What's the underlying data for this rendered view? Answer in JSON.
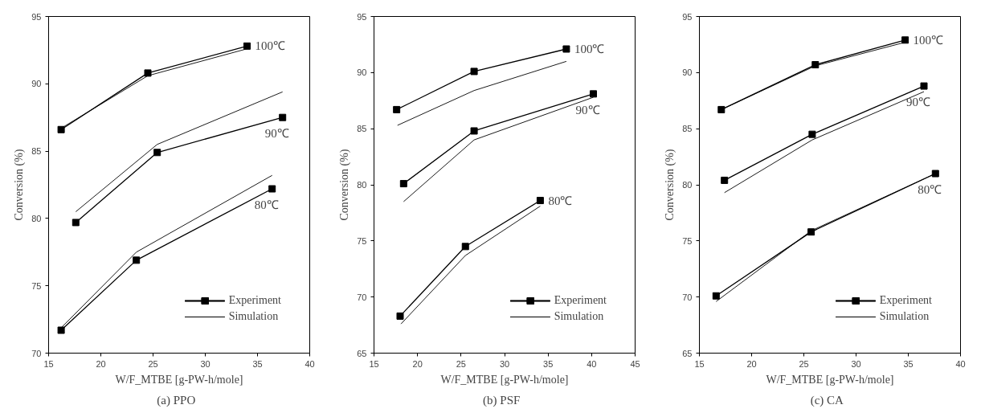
{
  "chart_data": [
    {
      "type": "line",
      "title": "(a)   PPO",
      "xlabel": "W/F_MTBE [g-PW-h/mole]",
      "ylabel": "Conversion (%)",
      "xlim": [
        15,
        40
      ],
      "ylim": [
        70,
        95
      ],
      "xticks": [
        15,
        20,
        25,
        30,
        35,
        40
      ],
      "yticks": [
        70,
        75,
        80,
        85,
        90,
        95
      ],
      "legend": "bottom right",
      "grid": false,
      "series": [
        {
          "name": "Experiment",
          "color": "#000000",
          "marker": "square",
          "x": [
            16.2,
            24.5,
            34.0
          ],
          "values": [
            86.6,
            90.8,
            92.8
          ]
        },
        {
          "name": "Simulation",
          "color": "#000000",
          "marker": "none",
          "x": [
            16.2,
            24.5,
            34.0
          ],
          "values": [
            86.7,
            90.6,
            92.6
          ]
        },
        {
          "name": "Experiment",
          "color": "#000000",
          "marker": "square",
          "x": [
            17.6,
            25.4,
            37.4
          ],
          "values": [
            79.7,
            84.9,
            87.5
          ]
        },
        {
          "name": "Simulation",
          "color": "#000000",
          "marker": "none",
          "x": [
            17.6,
            25.4,
            37.4
          ],
          "values": [
            80.5,
            85.5,
            89.4
          ]
        },
        {
          "name": "Experiment",
          "color": "#000000",
          "marker": "square",
          "x": [
            16.2,
            23.4,
            36.4
          ],
          "values": [
            71.7,
            76.9,
            82.2
          ]
        },
        {
          "name": "Simulation",
          "color": "#000000",
          "marker": "none",
          "x": [
            16.1,
            23.4,
            36.4
          ],
          "values": [
            71.8,
            77.5,
            83.2
          ]
        }
      ],
      "annotations": [
        "100℃",
        "90℃",
        "80℃"
      ]
    },
    {
      "type": "line",
      "title": "(b)   PSF",
      "xlabel": "W/F_MTBE [g-PW-h/mole]",
      "ylabel": "Conversion (%)",
      "xlim": [
        15,
        45
      ],
      "ylim": [
        65,
        95
      ],
      "xticks": [
        15,
        20,
        25,
        30,
        35,
        40,
        45
      ],
      "yticks": [
        65,
        70,
        75,
        80,
        85,
        90,
        95
      ],
      "legend": "bottom right",
      "grid": false,
      "series": [
        {
          "name": "Experiment",
          "color": "#000000",
          "marker": "square",
          "x": [
            17.6,
            26.5,
            37.1
          ],
          "values": [
            86.7,
            90.1,
            92.1
          ]
        },
        {
          "name": "Simulation",
          "color": "#000000",
          "marker": "none",
          "x": [
            17.7,
            26.5,
            37.1
          ],
          "values": [
            85.3,
            88.4,
            91.0
          ]
        },
        {
          "name": "Experiment",
          "color": "#000000",
          "marker": "square",
          "x": [
            18.4,
            26.5,
            40.2
          ],
          "values": [
            80.1,
            84.8,
            88.1
          ]
        },
        {
          "name": "Simulation",
          "color": "#000000",
          "marker": "none",
          "x": [
            18.4,
            26.5,
            40.2
          ],
          "values": [
            78.5,
            84.0,
            87.8
          ]
        },
        {
          "name": "Experiment",
          "color": "#000000",
          "marker": "square",
          "x": [
            18.0,
            25.5,
            34.1
          ],
          "values": [
            68.3,
            74.5,
            78.6
          ]
        },
        {
          "name": "Simulation",
          "color": "#000000",
          "marker": "none",
          "x": [
            18.1,
            25.5,
            34.1
          ],
          "values": [
            67.6,
            73.7,
            78.1
          ]
        }
      ],
      "annotations": [
        "100℃",
        "90℃",
        "80℃"
      ]
    },
    {
      "type": "line",
      "title": "(c)   CA",
      "xlabel": "W/F_MTBE [g-PW-h/mole]",
      "ylabel": "Conversion (%)",
      "xlim": [
        15,
        40
      ],
      "ylim": [
        65,
        95
      ],
      "xticks": [
        15,
        20,
        25,
        30,
        35,
        40
      ],
      "yticks": [
        65,
        70,
        75,
        80,
        85,
        90,
        95
      ],
      "legend": "bottom right",
      "grid": false,
      "series": [
        {
          "name": "Experiment",
          "color": "#000000",
          "marker": "square",
          "x": [
            17.1,
            26.1,
            34.7
          ],
          "values": [
            86.7,
            90.7,
            92.9
          ]
        },
        {
          "name": "Simulation",
          "color": "#000000",
          "marker": "none",
          "x": [
            17.1,
            26.1,
            34.7
          ],
          "values": [
            86.7,
            90.6,
            92.7
          ]
        },
        {
          "name": "Experiment",
          "color": "#000000",
          "marker": "square",
          "x": [
            17.4,
            25.8,
            36.5
          ],
          "values": [
            80.4,
            84.5,
            88.8
          ]
        },
        {
          "name": "Simulation",
          "color": "#000000",
          "marker": "none",
          "x": [
            17.4,
            25.8,
            36.5
          ],
          "values": [
            79.3,
            84.0,
            88.3
          ]
        },
        {
          "name": "Experiment",
          "color": "#000000",
          "marker": "square",
          "x": [
            16.6,
            25.7,
            37.6
          ],
          "values": [
            70.1,
            75.8,
            81.0
          ]
        },
        {
          "name": "Simulation",
          "color": "#000000",
          "marker": "none",
          "x": [
            16.6,
            25.7,
            37.6
          ],
          "values": [
            69.6,
            75.9,
            81.0
          ]
        }
      ],
      "annotations": [
        "100℃",
        "90℃",
        "80℃"
      ]
    }
  ]
}
